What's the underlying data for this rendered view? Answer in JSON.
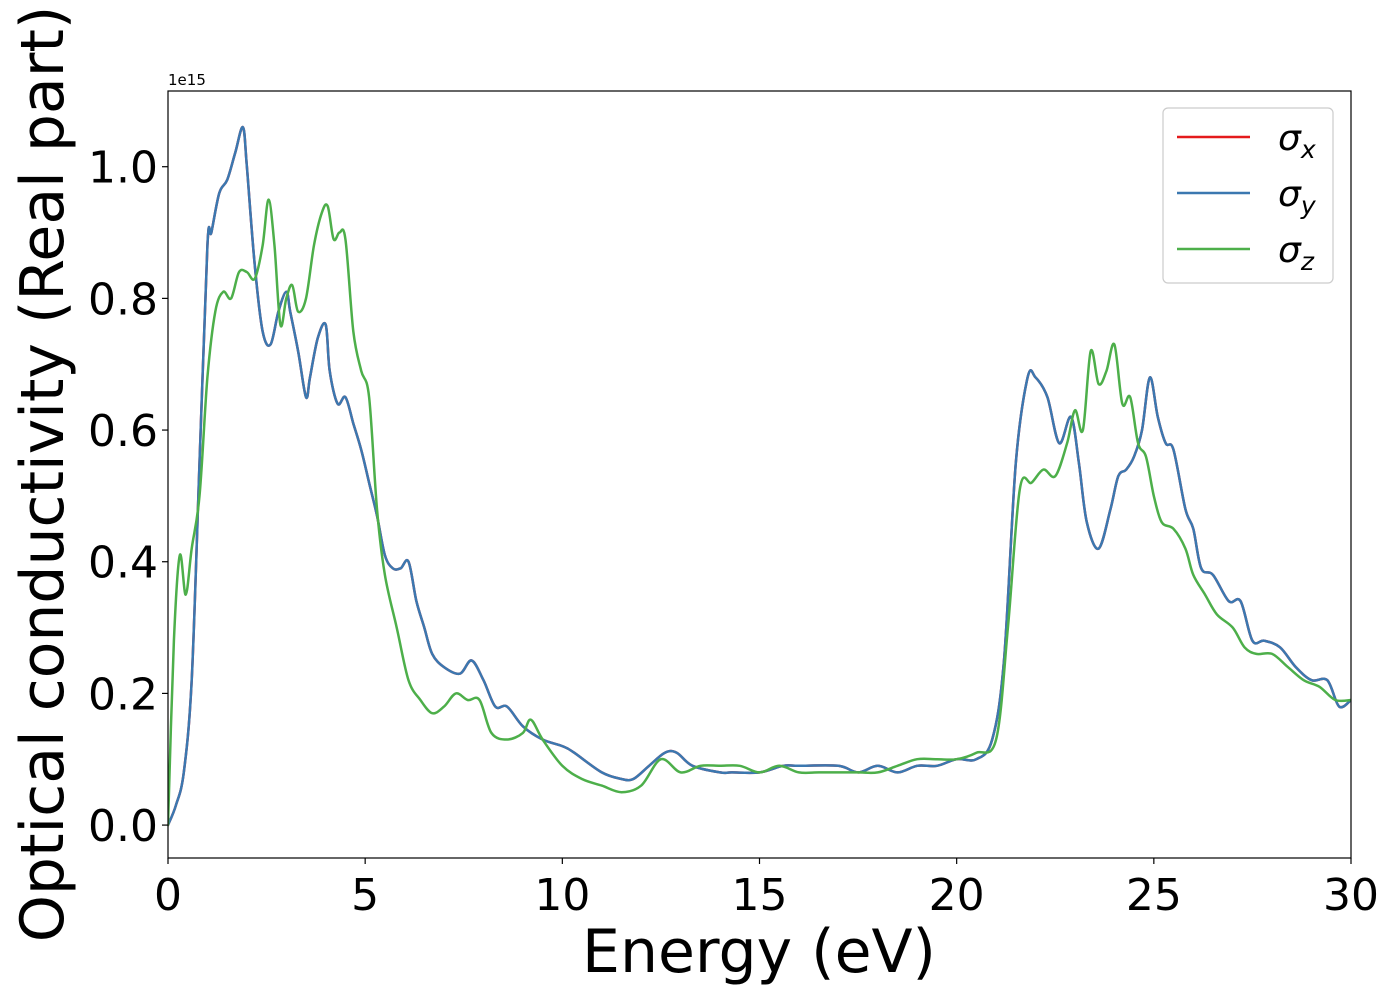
{
  "chart_data": {
    "type": "line",
    "xlabel": "Energy (eV)",
    "ylabel": "Optical conductivity (Real part)",
    "y_offset_text": "1e15",
    "xlim": [
      0,
      30
    ],
    "ylim": [
      -0.05,
      1.115
    ],
    "y_scale": 1000000000000000.0,
    "grid": false,
    "legend_position": "top-right",
    "x_ticks": [
      0,
      5,
      10,
      15,
      20,
      25,
      30
    ],
    "x_tick_labels": [
      "0",
      "5",
      "10",
      "15",
      "20",
      "25",
      "30"
    ],
    "y_ticks": [
      0.0,
      0.2,
      0.4,
      0.6,
      0.8,
      1.0
    ],
    "y_tick_labels": [
      "0.0",
      "0.2",
      "0.4",
      "0.6",
      "0.8",
      "1.0"
    ],
    "series": [
      {
        "name": "σx",
        "symbol": "σ",
        "subscript": "x",
        "color": "#e41a1c",
        "shares_curve_with": "σy",
        "x": [
          0,
          0.2,
          0.4,
          0.6,
          0.8,
          1.0,
          1.1,
          1.3,
          1.5,
          1.7,
          1.9,
          2.0,
          2.2,
          2.4,
          2.6,
          2.8,
          3.0,
          3.1,
          3.3,
          3.5,
          3.6,
          3.8,
          4.0,
          4.1,
          4.3,
          4.5,
          4.7,
          4.9,
          5.1,
          5.3,
          5.5,
          5.7,
          5.9,
          6.1,
          6.3,
          6.5,
          6.7,
          7.0,
          7.4,
          7.7,
          8.0,
          8.3,
          8.6,
          9.0,
          9.5,
          10.0,
          10.3,
          11.0,
          11.5,
          11.8,
          12.2,
          12.6,
          12.9,
          13.3,
          14.0,
          14.3,
          15.0,
          15.6,
          16.0,
          17.0,
          17.5,
          18.0,
          18.5,
          19.0,
          19.5,
          20.0,
          20.5,
          20.9,
          21.2,
          21.5,
          21.8,
          22.0,
          22.3,
          22.6,
          22.9,
          23.1,
          23.3,
          23.6,
          23.9,
          24.1,
          24.3,
          24.5,
          24.7,
          24.9,
          25.1,
          25.3,
          25.5,
          25.8,
          26.0,
          26.2,
          26.5,
          26.9,
          27.2,
          27.5,
          27.8,
          28.2,
          28.6,
          29.0,
          29.4,
          29.7,
          30.0
        ],
        "y": [
          0.0,
          0.03,
          0.08,
          0.22,
          0.55,
          0.88,
          0.9,
          0.96,
          0.98,
          1.02,
          1.06,
          1.0,
          0.85,
          0.75,
          0.73,
          0.78,
          0.81,
          0.78,
          0.72,
          0.65,
          0.68,
          0.74,
          0.76,
          0.69,
          0.64,
          0.65,
          0.61,
          0.57,
          0.52,
          0.47,
          0.41,
          0.39,
          0.39,
          0.4,
          0.34,
          0.3,
          0.26,
          0.24,
          0.23,
          0.25,
          0.22,
          0.18,
          0.18,
          0.15,
          0.13,
          0.12,
          0.11,
          0.08,
          0.07,
          0.07,
          0.09,
          0.11,
          0.11,
          0.09,
          0.08,
          0.08,
          0.08,
          0.09,
          0.09,
          0.09,
          0.08,
          0.09,
          0.08,
          0.09,
          0.09,
          0.1,
          0.1,
          0.13,
          0.25,
          0.55,
          0.68,
          0.68,
          0.65,
          0.58,
          0.62,
          0.55,
          0.46,
          0.42,
          0.48,
          0.53,
          0.54,
          0.56,
          0.6,
          0.68,
          0.62,
          0.58,
          0.57,
          0.48,
          0.45,
          0.39,
          0.38,
          0.34,
          0.34,
          0.28,
          0.28,
          0.27,
          0.24,
          0.22,
          0.22,
          0.18,
          0.19
        ]
      },
      {
        "name": "σy",
        "symbol": "σ",
        "subscript": "y",
        "color": "#3b78b0",
        "x": [
          0,
          0.2,
          0.4,
          0.6,
          0.8,
          1.0,
          1.1,
          1.3,
          1.5,
          1.7,
          1.9,
          2.0,
          2.2,
          2.4,
          2.6,
          2.8,
          3.0,
          3.1,
          3.3,
          3.5,
          3.6,
          3.8,
          4.0,
          4.1,
          4.3,
          4.5,
          4.7,
          4.9,
          5.1,
          5.3,
          5.5,
          5.7,
          5.9,
          6.1,
          6.3,
          6.5,
          6.7,
          7.0,
          7.4,
          7.7,
          8.0,
          8.3,
          8.6,
          9.0,
          9.5,
          10.0,
          10.3,
          11.0,
          11.5,
          11.8,
          12.2,
          12.6,
          12.9,
          13.3,
          14.0,
          14.3,
          15.0,
          15.6,
          16.0,
          17.0,
          17.5,
          18.0,
          18.5,
          19.0,
          19.5,
          20.0,
          20.5,
          20.9,
          21.2,
          21.5,
          21.8,
          22.0,
          22.3,
          22.6,
          22.9,
          23.1,
          23.3,
          23.6,
          23.9,
          24.1,
          24.3,
          24.5,
          24.7,
          24.9,
          25.1,
          25.3,
          25.5,
          25.8,
          26.0,
          26.2,
          26.5,
          26.9,
          27.2,
          27.5,
          27.8,
          28.2,
          28.6,
          29.0,
          29.4,
          29.7,
          30.0
        ],
        "y": [
          0.0,
          0.03,
          0.08,
          0.22,
          0.55,
          0.88,
          0.9,
          0.96,
          0.98,
          1.02,
          1.06,
          1.0,
          0.85,
          0.75,
          0.73,
          0.78,
          0.81,
          0.78,
          0.72,
          0.65,
          0.68,
          0.74,
          0.76,
          0.69,
          0.64,
          0.65,
          0.61,
          0.57,
          0.52,
          0.47,
          0.41,
          0.39,
          0.39,
          0.4,
          0.34,
          0.3,
          0.26,
          0.24,
          0.23,
          0.25,
          0.22,
          0.18,
          0.18,
          0.15,
          0.13,
          0.12,
          0.11,
          0.08,
          0.07,
          0.07,
          0.09,
          0.11,
          0.11,
          0.09,
          0.08,
          0.08,
          0.08,
          0.09,
          0.09,
          0.09,
          0.08,
          0.09,
          0.08,
          0.09,
          0.09,
          0.1,
          0.1,
          0.13,
          0.25,
          0.55,
          0.68,
          0.68,
          0.65,
          0.58,
          0.62,
          0.55,
          0.46,
          0.42,
          0.48,
          0.53,
          0.54,
          0.56,
          0.6,
          0.68,
          0.62,
          0.58,
          0.57,
          0.48,
          0.45,
          0.39,
          0.38,
          0.34,
          0.34,
          0.28,
          0.28,
          0.27,
          0.24,
          0.22,
          0.22,
          0.18,
          0.19
        ]
      },
      {
        "name": "σz",
        "symbol": "σ",
        "subscript": "z",
        "color": "#4daf4a",
        "x": [
          0,
          0.15,
          0.3,
          0.45,
          0.6,
          0.8,
          1.0,
          1.2,
          1.4,
          1.6,
          1.8,
          2.0,
          2.2,
          2.4,
          2.55,
          2.7,
          2.85,
          3.0,
          3.15,
          3.3,
          3.5,
          3.7,
          3.9,
          4.05,
          4.2,
          4.35,
          4.5,
          4.7,
          4.9,
          5.1,
          5.3,
          5.5,
          5.8,
          6.1,
          6.4,
          6.7,
          7.0,
          7.3,
          7.6,
          7.9,
          8.2,
          8.6,
          9.0,
          9.2,
          9.5,
          10.0,
          10.5,
          11.0,
          11.5,
          12.0,
          12.5,
          13.0,
          13.5,
          14.0,
          14.5,
          15.0,
          15.5,
          16.0,
          16.5,
          17.0,
          17.5,
          18.0,
          18.5,
          19.0,
          19.5,
          20.0,
          20.5,
          21.0,
          21.3,
          21.6,
          21.9,
          22.2,
          22.5,
          22.8,
          23.0,
          23.2,
          23.4,
          23.6,
          23.8,
          24.0,
          24.2,
          24.4,
          24.6,
          24.8,
          25.0,
          25.2,
          25.5,
          25.8,
          26.0,
          26.3,
          26.6,
          27.0,
          27.3,
          27.6,
          28.0,
          28.4,
          28.8,
          29.2,
          29.6,
          30.0
        ],
        "y": [
          0.0,
          0.28,
          0.41,
          0.35,
          0.42,
          0.5,
          0.68,
          0.78,
          0.81,
          0.8,
          0.84,
          0.84,
          0.83,
          0.88,
          0.95,
          0.88,
          0.76,
          0.8,
          0.82,
          0.78,
          0.8,
          0.88,
          0.93,
          0.94,
          0.89,
          0.9,
          0.89,
          0.75,
          0.69,
          0.65,
          0.48,
          0.38,
          0.3,
          0.22,
          0.19,
          0.17,
          0.18,
          0.2,
          0.19,
          0.19,
          0.14,
          0.13,
          0.14,
          0.16,
          0.13,
          0.09,
          0.07,
          0.06,
          0.05,
          0.06,
          0.1,
          0.08,
          0.09,
          0.09,
          0.09,
          0.08,
          0.09,
          0.08,
          0.08,
          0.08,
          0.08,
          0.08,
          0.09,
          0.1,
          0.1,
          0.1,
          0.11,
          0.13,
          0.3,
          0.51,
          0.52,
          0.54,
          0.53,
          0.58,
          0.63,
          0.6,
          0.72,
          0.67,
          0.69,
          0.73,
          0.64,
          0.65,
          0.58,
          0.56,
          0.5,
          0.46,
          0.45,
          0.42,
          0.38,
          0.35,
          0.32,
          0.3,
          0.27,
          0.26,
          0.26,
          0.24,
          0.22,
          0.21,
          0.19,
          0.19
        ]
      }
    ]
  }
}
